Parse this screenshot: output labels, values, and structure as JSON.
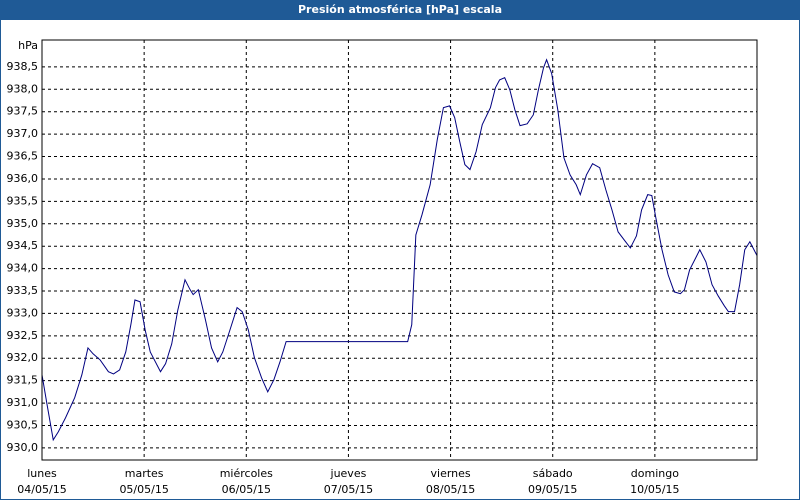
{
  "chart_data": {
    "type": "line",
    "title": "Presión atmosférica [hPa] escala",
    "y_label": "hPa",
    "color": "#000080",
    "grid": true,
    "xlim": [
      0,
      7
    ],
    "ylim": [
      929.73,
      939.1
    ],
    "xticks": [
      {
        "value": 0,
        "label": "lunes"
      },
      {
        "value": 1,
        "label": "martes"
      },
      {
        "value": 2,
        "label": "miércoles"
      },
      {
        "value": 3,
        "label": "jueves"
      },
      {
        "value": 4,
        "label": "viernes"
      },
      {
        "value": 5,
        "label": "sábado"
      },
      {
        "value": 6,
        "label": "domingo"
      }
    ],
    "xtick_dates": [
      "04/05/15",
      "05/05/15",
      "06/05/15",
      "07/05/15",
      "08/05/15",
      "09/05/15",
      "10/05/15"
    ],
    "yticks": [
      {
        "value": 930,
        "label": "930,0"
      },
      {
        "value": 930.5,
        "label": "930,5"
      },
      {
        "value": 931,
        "label": "931,0"
      },
      {
        "value": 931.5,
        "label": "931,5"
      },
      {
        "value": 932,
        "label": "932,0"
      },
      {
        "value": 932.5,
        "label": "932,5"
      },
      {
        "value": 933,
        "label": "933,0"
      },
      {
        "value": 933.5,
        "label": "933,5"
      },
      {
        "value": 934,
        "label": "934,0"
      },
      {
        "value": 934.5,
        "label": "934,5"
      },
      {
        "value": 935,
        "label": "935,0"
      },
      {
        "value": 935.5,
        "label": "935,5"
      },
      {
        "value": 936,
        "label": "936,0"
      },
      {
        "value": 936.5,
        "label": "936,5"
      },
      {
        "value": 937,
        "label": "937,0"
      },
      {
        "value": 937.5,
        "label": "937,5"
      },
      {
        "value": 938,
        "label": "938,0"
      },
      {
        "value": 938.5,
        "label": "938,5"
      }
    ],
    "x": [
      0,
      0.05,
      0.11,
      0.16,
      0.23,
      0.32,
      0.39,
      0.45,
      0.5,
      0.57,
      0.65,
      0.7,
      0.76,
      0.82,
      0.87,
      0.91,
      0.96,
      1.01,
      1.06,
      1.16,
      1.21,
      1.27,
      1.33,
      1.4,
      1.45,
      1.48,
      1.53,
      1.6,
      1.66,
      1.72,
      1.77,
      1.84,
      1.91,
      1.96,
      2.02,
      2.08,
      2.15,
      2.21,
      2.27,
      2.33,
      2.39,
      2.53,
      3.02,
      3.58,
      3.62,
      3.66,
      3.72,
      3.8,
      3.87,
      3.93,
      3.99,
      4.04,
      4.09,
      4.14,
      4.19,
      4.25,
      4.31,
      4.39,
      4.44,
      4.48,
      4.53,
      4.58,
      4.63,
      4.68,
      4.75,
      4.81,
      4.86,
      4.91,
      4.94,
      4.99,
      5.05,
      5.11,
      5.17,
      5.23,
      5.27,
      5.33,
      5.39,
      5.46,
      5.52,
      5.58,
      5.64,
      5.7,
      5.76,
      5.82,
      5.87,
      5.93,
      5.97,
      6.01,
      6.07,
      6.13,
      6.19,
      6.25,
      6.29,
      6.34,
      6.4,
      6.44,
      6.5,
      6.56,
      6.62,
      6.68,
      6.72,
      6.78,
      6.83,
      6.88,
      6.93,
      7.0
    ],
    "values": [
      931.63,
      930.96,
      930.18,
      930.36,
      930.67,
      931.12,
      931.63,
      932.23,
      932.1,
      931.96,
      931.7,
      931.65,
      931.74,
      932.14,
      932.75,
      933.3,
      933.26,
      932.63,
      932.14,
      931.7,
      931.88,
      932.32,
      933.08,
      933.75,
      933.53,
      933.42,
      933.53,
      932.86,
      932.23,
      931.92,
      932.14,
      932.63,
      933.13,
      933.04,
      932.63,
      932.01,
      931.56,
      931.25,
      931.52,
      931.92,
      932.37,
      932.37,
      932.37,
      932.37,
      932.75,
      934.75,
      935.2,
      935.87,
      936.88,
      937.59,
      937.63,
      937.37,
      936.83,
      936.32,
      936.21,
      936.61,
      937.21,
      937.59,
      938.04,
      938.21,
      938.26,
      937.99,
      937.54,
      937.19,
      937.23,
      937.43,
      937.99,
      938.48,
      938.66,
      938.35,
      937.54,
      936.47,
      936.09,
      935.87,
      935.65,
      936.09,
      936.34,
      936.25,
      935.76,
      935.31,
      934.82,
      934.64,
      934.46,
      934.73,
      935.31,
      935.65,
      935.63,
      935.13,
      934.42,
      933.86,
      933.48,
      933.44,
      933.53,
      933.97,
      934.24,
      934.42,
      934.15,
      933.64,
      933.39,
      933.17,
      933.04,
      933.04,
      933.64,
      934.42,
      934.6,
      934.29
    ]
  }
}
